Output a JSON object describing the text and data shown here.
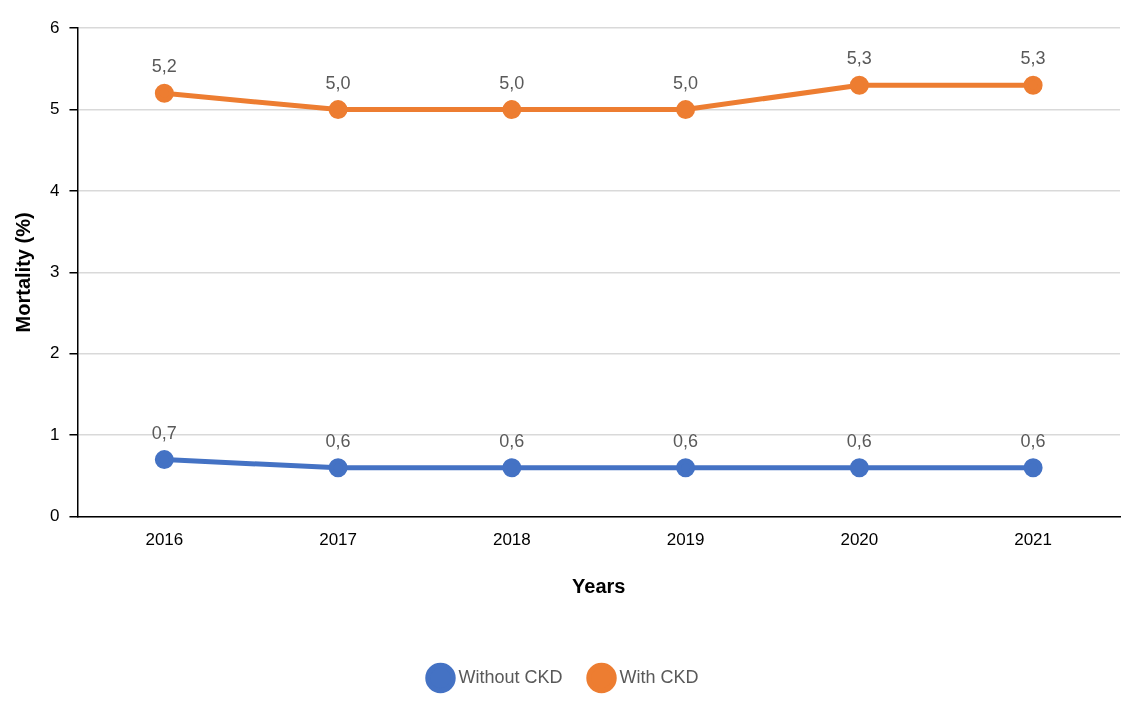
{
  "chart_data": {
    "type": "line",
    "xlabel": "Years",
    "ylabel": "Mortality (%)",
    "categories": [
      "2016",
      "2017",
      "2018",
      "2019",
      "2020",
      "2021"
    ],
    "series": [
      {
        "name": "Without CKD",
        "color": "#4472c4",
        "values": [
          0.7,
          0.6,
          0.6,
          0.6,
          0.6,
          0.6
        ],
        "value_labels": [
          "0,7",
          "0,6",
          "0,6",
          "0,6",
          "0,6",
          "0,6"
        ]
      },
      {
        "name": "With CKD",
        "color": "#ed7d31",
        "values": [
          5.2,
          5.0,
          5.0,
          5.0,
          5.3,
          5.3
        ],
        "value_labels": [
          "5,2",
          "5,0",
          "5,0",
          "5,0",
          "5,3",
          "5,3"
        ]
      }
    ],
    "ylim": [
      0,
      6
    ],
    "yticks": [
      0,
      1,
      2,
      3,
      4,
      5,
      6
    ],
    "grid": "y",
    "legend": "bottom",
    "marker": "circle",
    "line_style": "solid"
  }
}
